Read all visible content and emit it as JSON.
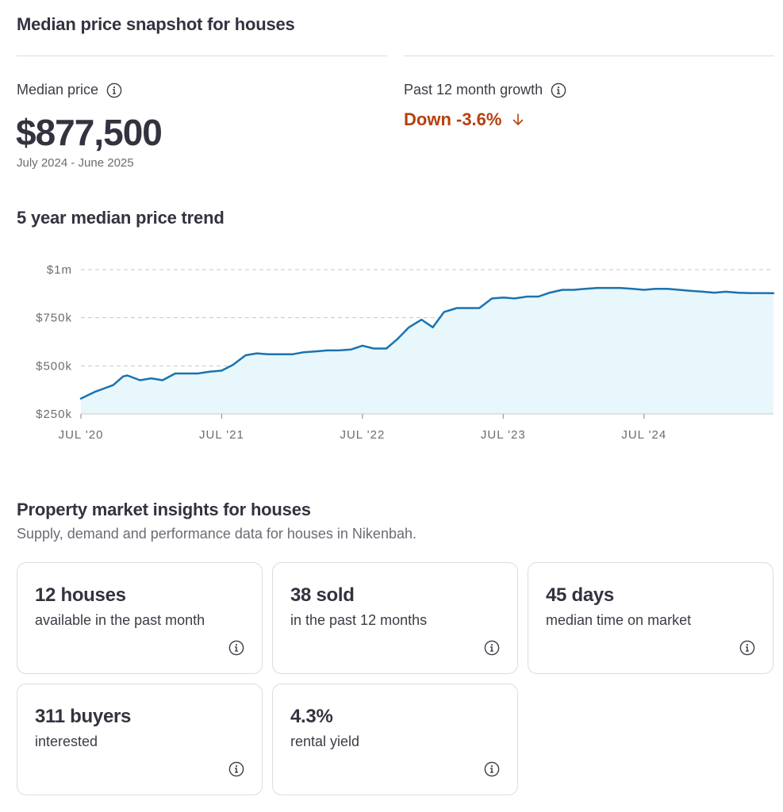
{
  "snapshot": {
    "title": "Median price snapshot for houses",
    "median_label": "Median price",
    "median_value": "$877,500",
    "period": "July 2024 - June 2025",
    "growth_label": "Past 12 month growth",
    "growth_value": "Down -3.6%",
    "growth_color": "#b5400e"
  },
  "trend": {
    "title": "5 year median price trend"
  },
  "chart_data": {
    "type": "area",
    "y_tick_labels": [
      "$1m",
      "$750k",
      "$500k",
      "$250k"
    ],
    "y_ticks": [
      1000000,
      750000,
      500000,
      250000
    ],
    "ylim": [
      250000,
      1000000
    ],
    "x_tick_labels": [
      "JUL '20",
      "JUL '21",
      "JUL '22",
      "JUL '23",
      "JUL '24"
    ],
    "x_ticks": [
      2020.5,
      2021.5,
      2022.5,
      2023.5,
      2024.5
    ],
    "xlim": [
      2020.5,
      2025.42
    ],
    "grid": true,
    "line_color": "#1a73b0",
    "fill_color": "#e8f7fb",
    "series": [
      {
        "x": [
          2020.5,
          2020.6,
          2020.73,
          2020.8,
          2020.83,
          2020.92,
          2021.0,
          2021.08,
          2021.17,
          2021.25,
          2021.33,
          2021.42,
          2021.5,
          2021.58,
          2021.67,
          2021.75,
          2021.83,
          2021.92,
          2022.0,
          2022.08,
          2022.17,
          2022.25,
          2022.33,
          2022.42,
          2022.5,
          2022.58,
          2022.67,
          2022.75,
          2022.83,
          2022.92,
          2023.0,
          2023.08,
          2023.17,
          2023.25,
          2023.33,
          2023.42,
          2023.5,
          2023.58,
          2023.67,
          2023.75,
          2023.83,
          2023.92,
          2024.0,
          2024.08,
          2024.17,
          2024.25,
          2024.33,
          2024.42,
          2024.5,
          2024.58,
          2024.67,
          2024.75,
          2024.83,
          2024.92,
          2025.0,
          2025.08,
          2025.17,
          2025.25,
          2025.33,
          2025.42
        ],
        "values": [
          330000,
          365000,
          400000,
          445000,
          450000,
          425000,
          435000,
          425000,
          460000,
          460000,
          460000,
          470000,
          475000,
          505000,
          555000,
          565000,
          560000,
          560000,
          560000,
          570000,
          575000,
          580000,
          580000,
          585000,
          605000,
          590000,
          590000,
          640000,
          700000,
          740000,
          700000,
          780000,
          800000,
          800000,
          800000,
          850000,
          855000,
          850000,
          860000,
          860000,
          880000,
          895000,
          895000,
          900000,
          905000,
          905000,
          905000,
          900000,
          895000,
          900000,
          900000,
          895000,
          890000,
          885000,
          880000,
          885000,
          880000,
          878000,
          878000,
          877500
        ]
      }
    ]
  },
  "insights": {
    "title": "Property market insights for houses",
    "subtitle": "Supply, demand and performance data for houses in Nikenbah.",
    "cards": [
      {
        "value": "12 houses",
        "desc": "available in the past month"
      },
      {
        "value": "38 sold",
        "desc": "in the past 12 months"
      },
      {
        "value": "45 days",
        "desc": "median time on market"
      },
      {
        "value": "311 buyers",
        "desc": "interested"
      },
      {
        "value": "4.3%",
        "desc": "rental yield"
      }
    ]
  }
}
